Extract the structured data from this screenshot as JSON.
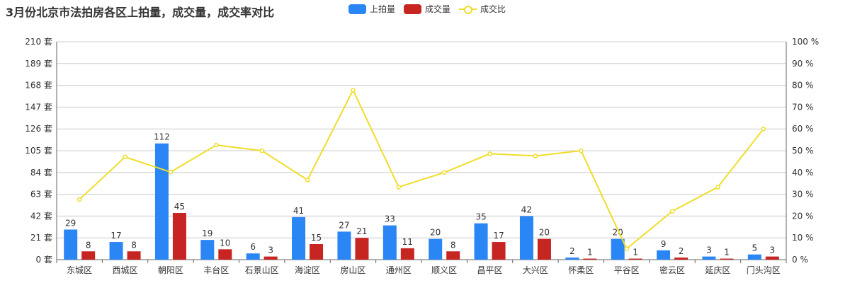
{
  "title": "3月份北京市法拍房各区上拍量，成交量，成交率对比",
  "legend": {
    "auction_label": "上拍量",
    "deal_label": "成交量",
    "rate_label": "成交比"
  },
  "colors": {
    "auction": "#2a85f5",
    "deal": "#c72521",
    "rate": "#f0dd2a",
    "grid": "#cccccc",
    "axis_text": "#333333"
  },
  "chart_data": {
    "type": "bar",
    "title": "3月份北京市法拍房各区上拍量，成交量，成交率对比",
    "categories": [
      "东城区",
      "西城区",
      "朝阳区",
      "丰台区",
      "石景山区",
      "海淀区",
      "房山区",
      "通州区",
      "顺义区",
      "昌平区",
      "大兴区",
      "怀柔区",
      "平谷区",
      "密云区",
      "延庆区",
      "门头沟区"
    ],
    "series": [
      {
        "name": "上拍量",
        "type": "bar",
        "axis": "left",
        "values": [
          29,
          17,
          112,
          19,
          6,
          41,
          27,
          33,
          20,
          35,
          42,
          2,
          20,
          9,
          3,
          5
        ]
      },
      {
        "name": "成交量",
        "type": "bar",
        "axis": "left",
        "values": [
          8,
          8,
          45,
          10,
          3,
          15,
          21,
          11,
          8,
          17,
          20,
          1,
          1,
          2,
          1,
          3
        ]
      },
      {
        "name": "成交比",
        "type": "line",
        "axis": "right",
        "values": [
          27.6,
          47.1,
          40.2,
          52.6,
          50,
          36.6,
          77.8,
          33.3,
          40,
          48.6,
          47.6,
          50,
          5,
          22.2,
          33.3,
          60
        ]
      }
    ],
    "y_left": {
      "min": 0,
      "max": 210,
      "ticks": [
        0,
        21,
        42,
        63,
        84,
        105,
        126,
        147,
        168,
        189,
        210
      ],
      "unit": "套"
    },
    "y_right": {
      "min": 0,
      "max": 100,
      "ticks": [
        0,
        10,
        20,
        30,
        40,
        50,
        60,
        70,
        80,
        90,
        100
      ],
      "unit": "%"
    },
    "grid": true,
    "legend_position": "top-center"
  }
}
